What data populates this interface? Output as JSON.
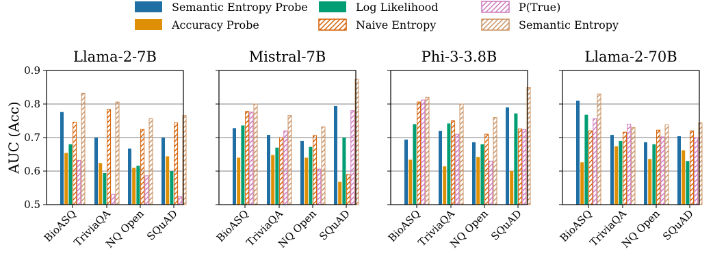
{
  "chart_data": {
    "type": "bar",
    "ylabel": "AUC (Acc)",
    "ylim": [
      0.5,
      0.9
    ],
    "yticks": [
      "0.5",
      "0.6",
      "0.7",
      "0.8",
      "0.9"
    ],
    "grid": "horizontal",
    "legend_position": "top-center",
    "categories": [
      "BioASQ",
      "TriviaQA",
      "NQ Open",
      "SQuAD"
    ],
    "series": [
      {
        "name": "Semantic Entropy Probe",
        "color": "#1f6fa5",
        "hatch": false
      },
      {
        "name": "Accuracy Probe",
        "color": "#de8f05",
        "hatch": false
      },
      {
        "name": "Log Likelihood",
        "color": "#029e73",
        "hatch": false
      },
      {
        "name": "Naive Entropy",
        "color": "#d55e00",
        "hatch": true
      },
      {
        "name": "P(True)",
        "color": "#cc78bc",
        "hatch": true
      },
      {
        "name": "Semantic Entropy",
        "color": "#ca9161",
        "hatch": true
      }
    ],
    "panels": [
      {
        "title": "Llama-2-7B",
        "values": [
          [
            0.776,
            0.654,
            0.68,
            0.746,
            0.632,
            0.832
          ],
          [
            0.7,
            0.624,
            0.594,
            0.784,
            0.53,
            0.806
          ],
          [
            0.667,
            0.61,
            0.616,
            0.724,
            0.586,
            0.756
          ],
          [
            0.7,
            0.644,
            0.6,
            0.744,
            0.524,
            0.766
          ]
        ]
      },
      {
        "title": "Mistral-7B",
        "values": [
          [
            0.728,
            0.64,
            0.736,
            0.778,
            0.776,
            0.8
          ],
          [
            0.708,
            0.648,
            0.67,
            0.7,
            0.72,
            0.766
          ],
          [
            0.69,
            0.64,
            0.672,
            0.706,
            0.606,
            0.732
          ],
          [
            0.794,
            0.568,
            0.7,
            0.59,
            0.78,
            0.874
          ]
        ]
      },
      {
        "title": "Phi-3-3.8B",
        "values": [
          [
            0.694,
            0.634,
            0.74,
            0.806,
            0.812,
            0.82
          ],
          [
            0.72,
            0.614,
            0.742,
            0.75,
            0.71,
            0.8
          ],
          [
            0.686,
            0.642,
            0.68,
            0.71,
            0.63,
            0.76
          ],
          [
            0.79,
            0.6,
            0.772,
            0.726,
            0.724,
            0.85
          ]
        ]
      },
      {
        "title": "Llama-2-70B",
        "values": [
          [
            0.81,
            0.626,
            0.768,
            0.72,
            0.756,
            0.83
          ],
          [
            0.708,
            0.674,
            0.69,
            0.716,
            0.74,
            0.73
          ],
          [
            0.686,
            0.636,
            0.68,
            0.722,
            0.702,
            0.738
          ],
          [
            0.704,
            0.662,
            0.63,
            0.72,
            0.7,
            0.744
          ]
        ]
      }
    ]
  }
}
